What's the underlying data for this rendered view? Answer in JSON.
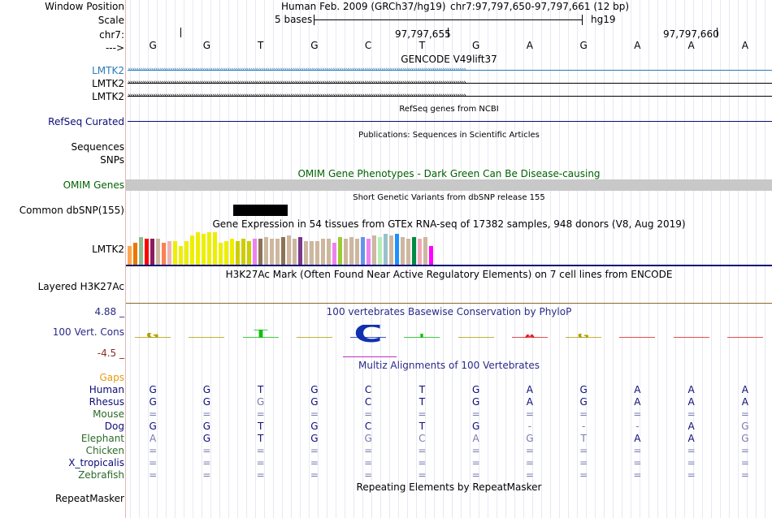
{
  "header": {
    "window_position_label": "Window Position",
    "scale_label": "Scale",
    "chrom_label": "chr7:",
    "strand_label": "--->",
    "assembly_title": "Human Feb. 2009 (GRCh37/hg19)",
    "position_text": "chr7:97,797,650-97,797,661 (12 bp)",
    "scale_text": "5 bases",
    "scale_assembly": "hg19",
    "coord_1": "97,797,655",
    "coord_2": "97,797,660",
    "bases": [
      "G",
      "G",
      "T",
      "G",
      "C",
      "T",
      "G",
      "A",
      "G",
      "A",
      "A",
      "A"
    ]
  },
  "gencode": {
    "title": "GENCODE V49lift37",
    "transcripts": [
      {
        "label": "LMTK2",
        "color": "#2a7ab8"
      },
      {
        "label": "LMTK2",
        "color": "#000000"
      },
      {
        "label": "LMTK2",
        "color": "#000000"
      }
    ]
  },
  "refseq": {
    "title": "RefSeq genes from NCBI",
    "label": "RefSeq Curated",
    "color": "#0c0c78"
  },
  "publications": {
    "title": "Publications: Sequences in Scientific Articles",
    "label_1": "Sequences",
    "label_2": "SNPs"
  },
  "omim": {
    "title": "OMIM Gene Phenotypes - Dark Green Can Be Disease-causing",
    "label": "OMIM Genes",
    "color": "#006400"
  },
  "dbsnp": {
    "title": "Short Genetic Variants from dbSNP release 155",
    "label": "Common dbSNP(155)"
  },
  "gtex": {
    "title": "Gene Expression in 54 tissues from GTEx RNA-seq of 17382 samples, 948 donors (V8, Aug 2019)",
    "label": "LMTK2",
    "levels": [
      0.55,
      0.65,
      0.8,
      0.75,
      0.75,
      0.75,
      0.65,
      0.7,
      0.7,
      0.55,
      0.7,
      0.85,
      0.95,
      0.9,
      0.95,
      0.95,
      0.65,
      0.7,
      0.75,
      0.7,
      0.75,
      0.7,
      0.75,
      0.75,
      0.8,
      0.75,
      0.75,
      0.8,
      0.85,
      0.75,
      0.8,
      0.7,
      0.7,
      0.7,
      0.75,
      0.75,
      0.65,
      0.8,
      0.75,
      0.8,
      0.75,
      0.8,
      0.75,
      0.85,
      0.8,
      0.9,
      0.85,
      0.9,
      0.8,
      0.75,
      0.8,
      0.75,
      0.8,
      0.55
    ],
    "colors": [
      "#ffa54f",
      "#ee7600",
      "#8fbc8f",
      "#ff0000",
      "#8b1c62",
      "#cdb79e",
      "#ff7f50",
      "#eeb4b4",
      "#eeee00",
      "#eeee00",
      "#eeee00",
      "#eeee00",
      "#eeee00",
      "#eeee00",
      "#eeee00",
      "#eeee00",
      "#eeee00",
      "#eeee00",
      "#eeee00",
      "#cdcd00",
      "#cdcd00",
      "#cdcd00",
      "#ee82ee",
      "#8b7355",
      "#cdb79e",
      "#cdb79e",
      "#cdb79e",
      "#8b7355",
      "#cdb79e",
      "#cdb79e",
      "#7a378b",
      "#cdb79e",
      "#cdb79e",
      "#cdb79e",
      "#cdb79e",
      "#cdb79e",
      "#ee82ee",
      "#9acd32",
      "#cdb79e",
      "#cdb79e",
      "#cdb79e",
      "#6495ed",
      "#ee82ee",
      "#cdb79e",
      "#b4eeb4",
      "#9ac0cd",
      "#cdb79e",
      "#1e90ff",
      "#cdb79e",
      "#cdb79e",
      "#008b45",
      "#eea9b8",
      "#cdb79e",
      "#ff00ff"
    ]
  },
  "h3k27ac": {
    "title": "H3K27Ac Mark (Often Found Near Active Regulatory Elements) on 7 cell lines from ENCODE",
    "label": "Layered H3K27Ac"
  },
  "conservation": {
    "title": "100 vertebrates Basewise Conservation by PhyloP",
    "label": "100 Vert. Cons",
    "max_label": "4.88 _",
    "min_label": "-4.5 _",
    "scores": [
      0.35,
      0.05,
      0.6,
      0.05,
      1.5,
      0.3,
      0.05,
      0.25,
      0.3,
      0.0,
      0.0,
      0.1
    ],
    "colors": {
      "A": "#e02020",
      "C": "#1030b0",
      "G": "#b0a000",
      "T": "#10c010"
    },
    "title_color": "#2a2a8a"
  },
  "multiz": {
    "title": "Multiz Alignments of 100 Vertebrates",
    "gaps_label": "Gaps",
    "gaps_color": "#e89a10",
    "species": [
      {
        "name": "Human",
        "color": "#0c0c78",
        "seq": [
          "G",
          "G",
          "T",
          "G",
          "C",
          "T",
          "G",
          "A",
          "G",
          "A",
          "A",
          "A"
        ]
      },
      {
        "name": "Rhesus",
        "color": "#0c0c78",
        "seq": [
          "G",
          "G",
          "G",
          "G",
          "C",
          "T",
          "G",
          "A",
          "G",
          "A",
          "A",
          "A"
        ]
      },
      {
        "name": "Mouse",
        "color": "#2a6a2a",
        "seq": [
          "=",
          "=",
          "=",
          "=",
          "=",
          "=",
          "=",
          "=",
          "=",
          "=",
          "=",
          "="
        ]
      },
      {
        "name": "Dog",
        "color": "#0c0c78",
        "seq": [
          "G",
          "G",
          "T",
          "G",
          "C",
          "T",
          "G",
          "-",
          "-",
          "-",
          "A",
          "G"
        ]
      },
      {
        "name": "Elephant",
        "color": "#2a6a2a",
        "seq": [
          "A",
          "G",
          "T",
          "G",
          "G",
          "C",
          "A",
          "G",
          "T",
          "A",
          "A",
          "G"
        ]
      },
      {
        "name": "Chicken",
        "color": "#2a6a2a",
        "seq": [
          "=",
          "=",
          "=",
          "=",
          "=",
          "=",
          "=",
          "=",
          "=",
          "=",
          "=",
          "="
        ]
      },
      {
        "name": "X_tropicalis",
        "color": "#0c0c78",
        "seq": [
          "=",
          "=",
          "=",
          "=",
          "=",
          "=",
          "=",
          "=",
          "=",
          "=",
          "=",
          "="
        ]
      },
      {
        "name": "Zebrafish",
        "color": "#2a6a2a",
        "seq": [
          "=",
          "=",
          "=",
          "=",
          "=",
          "=",
          "=",
          "=",
          "=",
          "=",
          "=",
          "="
        ]
      }
    ]
  },
  "repeatmasker": {
    "title": "Repeating Elements by RepeatMasker",
    "label": "RepeatMasker"
  }
}
